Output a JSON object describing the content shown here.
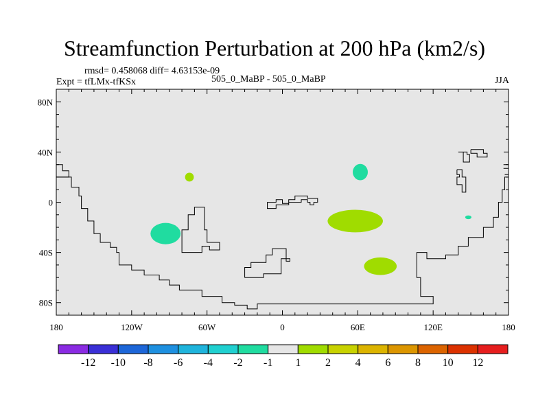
{
  "title": "Streamfunction Perturbation at 200 hPa (km2/s)",
  "stats_line": "rmsd= 0.458068 diff= 4.63153e-09",
  "left_label": "Expt = tfLMx-tfKSx",
  "center_label": "505_0_MaBP - 505_0_MaBP",
  "right_label": "JJA",
  "colors": {
    "ocean": "#e6e6e6",
    "coast": "#000000"
  },
  "axes": {
    "lon_range": [
      -180,
      180
    ],
    "lat_range": [
      -90,
      90
    ],
    "x_ticks": [
      {
        "value": -180,
        "label": "180"
      },
      {
        "value": -120,
        "label": "120W"
      },
      {
        "value": -60,
        "label": "60W"
      },
      {
        "value": 0,
        "label": "0"
      },
      {
        "value": 60,
        "label": "60E"
      },
      {
        "value": 120,
        "label": "120E"
      },
      {
        "value": 180,
        "label": "180"
      }
    ],
    "y_ticks": [
      {
        "value": 80,
        "label": "80N"
      },
      {
        "value": 40,
        "label": "40N"
      },
      {
        "value": 0,
        "label": "0"
      },
      {
        "value": -40,
        "label": "40S"
      },
      {
        "value": -80,
        "label": "80S"
      }
    ]
  },
  "colorbar": {
    "colors": [
      "#8a2be2",
      "#3a2fd6",
      "#1d66d8",
      "#1e90e0",
      "#1fb4dc",
      "#20d0d0",
      "#20dca0",
      "#e6e6e6",
      "#a0dc00",
      "#c8d200",
      "#dcb400",
      "#dc9600",
      "#dc6400",
      "#dc3200",
      "#e61e1e"
    ],
    "labels": [
      "-12",
      "-10",
      "-8",
      "-6",
      "-4",
      "-2",
      "-1",
      "1",
      "2",
      "4",
      "6",
      "8",
      "10",
      "12"
    ]
  },
  "anomalies": [
    {
      "name": "eastern-pacific-negative",
      "lon": -93,
      "lat": -25,
      "rlon": 12,
      "rlat": 8.5,
      "color": "#20dca0"
    },
    {
      "name": "atlantic-small-positive",
      "lon": -74,
      "lat": 20,
      "rlon": 3.5,
      "rlat": 3.5,
      "color": "#a0dc00"
    },
    {
      "name": "central-asia-negative",
      "lon": 62,
      "lat": 24,
      "rlon": 6,
      "rlat": 6.5,
      "color": "#20dca0"
    },
    {
      "name": "indian-ocean-positive",
      "lon": 58,
      "lat": -15,
      "rlon": 22,
      "rlat": 9,
      "color": "#a0dc00"
    },
    {
      "name": "southern-indian-positive",
      "lon": 78,
      "lat": -51,
      "rlon": 13,
      "rlat": 7,
      "color": "#a0dc00"
    },
    {
      "name": "west-pacific-tiny-negative",
      "lon": 148,
      "lat": -12,
      "rlon": 2.5,
      "rlat": 1.5,
      "color": "#20dca0"
    }
  ],
  "coastlines": [
    [
      [
        -180,
        30
      ],
      [
        -175,
        30
      ],
      [
        -175,
        25
      ],
      [
        -170,
        25
      ],
      [
        -170,
        20
      ],
      [
        -180,
        20
      ]
    ],
    [
      [
        -180,
        20
      ],
      [
        -168,
        20
      ],
      [
        -168,
        12
      ],
      [
        -162,
        12
      ],
      [
        -162,
        5
      ],
      [
        -160,
        5
      ],
      [
        -160,
        -5
      ],
      [
        -155,
        -5
      ],
      [
        -155,
        -15
      ],
      [
        -150,
        -15
      ],
      [
        -150,
        -25
      ],
      [
        -145,
        -25
      ],
      [
        -145,
        -32
      ],
      [
        -137,
        -32
      ],
      [
        -137,
        -36
      ],
      [
        -132,
        -36
      ],
      [
        -132,
        -40
      ],
      [
        -130,
        -40
      ],
      [
        -130,
        -50
      ],
      [
        -120,
        -50
      ],
      [
        -120,
        -54
      ],
      [
        -110,
        -54
      ],
      [
        -110,
        -58
      ],
      [
        -98,
        -58
      ],
      [
        -98,
        -62
      ],
      [
        -90,
        -62
      ],
      [
        -90,
        -66
      ],
      [
        -82,
        -66
      ],
      [
        -82,
        -70
      ],
      [
        -64,
        -70
      ],
      [
        -64,
        -75
      ],
      [
        -48,
        -75
      ],
      [
        -48,
        -80
      ],
      [
        -38,
        -80
      ],
      [
        -38,
        -82
      ],
      [
        -28,
        -82
      ],
      [
        -28,
        -85
      ],
      [
        -20,
        -85
      ],
      [
        -20,
        -81
      ],
      [
        120,
        -81
      ],
      [
        120,
        -75
      ],
      [
        110,
        -75
      ],
      [
        110,
        -60
      ],
      [
        107,
        -60
      ],
      [
        107,
        -40
      ],
      [
        115,
        -40
      ],
      [
        115,
        -45
      ],
      [
        130,
        -45
      ],
      [
        130,
        -42
      ],
      [
        140,
        -42
      ],
      [
        140,
        -35
      ],
      [
        148,
        -35
      ],
      [
        148,
        -28
      ],
      [
        160,
        -28
      ],
      [
        160,
        -20
      ],
      [
        168,
        -20
      ],
      [
        168,
        -12
      ],
      [
        172,
        -12
      ],
      [
        172,
        0
      ],
      [
        175,
        0
      ],
      [
        175,
        10
      ],
      [
        177,
        10
      ],
      [
        177,
        20
      ],
      [
        180,
        20
      ]
    ],
    [
      [
        -70,
        -40
      ],
      [
        -80,
        -40
      ],
      [
        -80,
        -22
      ],
      [
        -75,
        -22
      ],
      [
        -75,
        -10
      ],
      [
        -70,
        -10
      ],
      [
        -70,
        -4
      ],
      [
        -62,
        -4
      ],
      [
        -62,
        -22
      ],
      [
        -60,
        -22
      ],
      [
        -60,
        -32
      ],
      [
        -50,
        -32
      ],
      [
        -50,
        -38
      ],
      [
        -58,
        -38
      ],
      [
        -58,
        -35
      ],
      [
        -64,
        -35
      ],
      [
        -64,
        -40
      ],
      [
        -70,
        -40
      ]
    ],
    [
      [
        -12,
        0
      ],
      [
        -12,
        -5
      ],
      [
        -5,
        -5
      ],
      [
        -5,
        -2
      ],
      [
        5,
        -2
      ],
      [
        5,
        0
      ],
      [
        15,
        0
      ],
      [
        15,
        2
      ],
      [
        20,
        2
      ],
      [
        20,
        0
      ],
      [
        22,
        0
      ],
      [
        22,
        -2
      ],
      [
        25,
        -2
      ],
      [
        25,
        0
      ],
      [
        28,
        0
      ],
      [
        28,
        3
      ],
      [
        20,
        3
      ],
      [
        20,
        5
      ],
      [
        10,
        5
      ],
      [
        10,
        2
      ],
      [
        5,
        2
      ],
      [
        5,
        -1
      ],
      [
        0,
        -1
      ],
      [
        0,
        2
      ],
      [
        -5,
        2
      ],
      [
        -5,
        0
      ],
      [
        -12,
        0
      ]
    ],
    [
      [
        -30,
        -60
      ],
      [
        -15,
        -60
      ],
      [
        -15,
        -57
      ],
      [
        -1,
        -57
      ],
      [
        -1,
        -45
      ],
      [
        6,
        -45
      ],
      [
        6,
        -47
      ],
      [
        3,
        -47
      ],
      [
        3,
        -37
      ],
      [
        -8,
        -37
      ],
      [
        -8,
        -42
      ],
      [
        -13,
        -42
      ],
      [
        -13,
        -48
      ],
      [
        -25,
        -48
      ],
      [
        -25,
        -52
      ],
      [
        -30,
        -52
      ],
      [
        -30,
        -60
      ]
    ],
    [
      [
        140,
        40
      ],
      [
        147,
        40
      ],
      [
        147,
        38
      ],
      [
        149,
        38
      ],
      [
        149,
        32
      ],
      [
        144,
        32
      ],
      [
        144,
        40
      ]
    ],
    [
      [
        150,
        42
      ],
      [
        160,
        42
      ],
      [
        160,
        39
      ],
      [
        163,
        39
      ],
      [
        163,
        36
      ],
      [
        155,
        36
      ],
      [
        155,
        39
      ],
      [
        150,
        39
      ],
      [
        150,
        42
      ]
    ],
    [
      [
        139,
        26
      ],
      [
        143,
        26
      ],
      [
        143,
        20
      ],
      [
        146,
        20
      ],
      [
        146,
        8
      ],
      [
        143,
        8
      ],
      [
        143,
        14
      ],
      [
        139,
        14
      ],
      [
        139,
        20
      ],
      [
        141,
        20
      ],
      [
        141,
        22
      ],
      [
        139,
        22
      ],
      [
        139,
        26
      ]
    ],
    [
      [
        177,
        22
      ],
      [
        180,
        22
      ],
      [
        180,
        24
      ]
    ],
    [
      [
        176,
        27
      ],
      [
        180,
        27
      ],
      [
        180,
        30
      ],
      [
        176,
        30
      ]
    ]
  ]
}
